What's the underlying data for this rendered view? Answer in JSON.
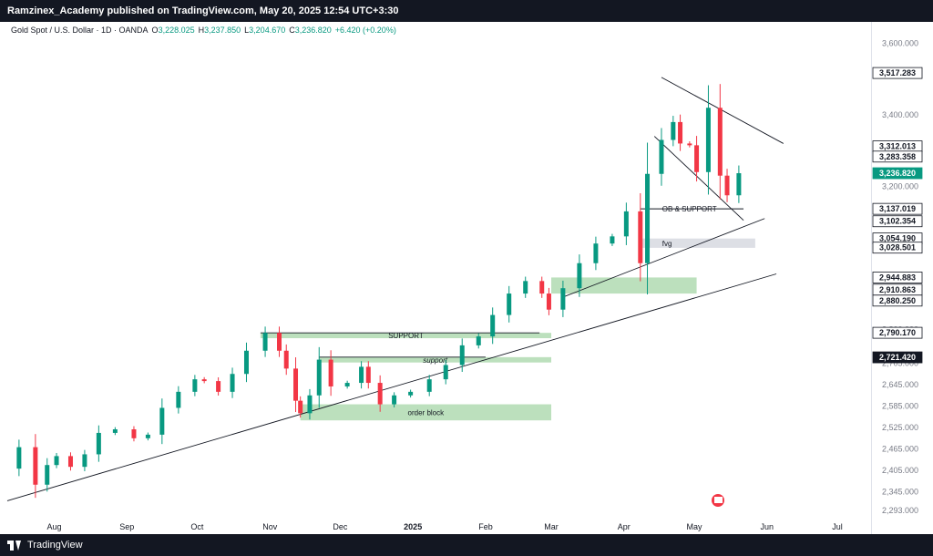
{
  "header": {
    "text": "Ramzinex_Academy published on TradingView.com, May 20, 2025 12:54 UTC+3:30"
  },
  "footer": {
    "brand": "TradingView"
  },
  "legend": {
    "symbol": "Gold Spot / U.S. Dollar · 1D · OANDA",
    "open_label": "O",
    "open": "3,228.025",
    "high_label": "H",
    "high": "3,237.850",
    "low_label": "L",
    "low": "3,204.670",
    "close_label": "C",
    "close": "3,236.820",
    "change": "+6.420 (+0.20%)"
  },
  "colors": {
    "up": "#089981",
    "down": "#f23645",
    "zone": "#a5d6a7",
    "fvg": "#d1d4dc",
    "dark_badge": "#131722",
    "price_badge": "#089981"
  },
  "chart_data": {
    "type": "candlestick",
    "x_range": [
      "2024-07-12",
      "2025-07-15"
    ],
    "y_range": [
      2270,
      3640
    ],
    "x_tick_labels": [
      {
        "label": "Aug",
        "date": "2024-08-01"
      },
      {
        "label": "Sep",
        "date": "2024-09-01"
      },
      {
        "label": "Oct",
        "date": "2024-10-01"
      },
      {
        "label": "Nov",
        "date": "2024-11-01"
      },
      {
        "label": "Dec",
        "date": "2024-12-01"
      },
      {
        "label": "2025",
        "date": "2025-01-01"
      },
      {
        "label": "Feb",
        "date": "2025-02-01"
      },
      {
        "label": "Mar",
        "date": "2025-03-01"
      },
      {
        "label": "Apr",
        "date": "2025-04-01"
      },
      {
        "label": "May",
        "date": "2025-05-01"
      },
      {
        "label": "Jun",
        "date": "2025-06-01"
      },
      {
        "label": "Jul",
        "date": "2025-07-01"
      }
    ],
    "y_tick_labels": [
      {
        "label": "3,600.000",
        "value": 3600
      },
      {
        "label": "3,400.000",
        "value": 3400
      },
      {
        "label": "3,200.000",
        "value": 3200
      },
      {
        "label": "2,800.000",
        "value": 2800
      },
      {
        "label": "2,705.000",
        "value": 2705
      },
      {
        "label": "2,645.000",
        "value": 2645
      },
      {
        "label": "2,585.000",
        "value": 2585
      },
      {
        "label": "2,525.000",
        "value": 2525
      },
      {
        "label": "2,465.000",
        "value": 2465
      },
      {
        "label": "2,405.000",
        "value": 2405
      },
      {
        "label": "2,345.000",
        "value": 2345
      },
      {
        "label": "2,293.000",
        "value": 2293
      }
    ],
    "price_badges": [
      {
        "label": "3,517.283",
        "value": 3517.283,
        "style": "white"
      },
      {
        "label": "3,312.013",
        "value": 3312.013,
        "style": "white"
      },
      {
        "label": "3,283.358",
        "value": 3283.358,
        "style": "white"
      },
      {
        "label": "3,236.820",
        "value": 3236.82,
        "style": "current"
      },
      {
        "label": "3,137.019",
        "value": 3137.019,
        "style": "white"
      },
      {
        "label": "3,102.354",
        "value": 3102.354,
        "style": "white"
      },
      {
        "label": "3,054.190",
        "value": 3054.19,
        "style": "white"
      },
      {
        "label": "3,028.501",
        "value": 3028.501,
        "style": "white"
      },
      {
        "label": "2,944.883",
        "value": 2944.883,
        "style": "white"
      },
      {
        "label": "2,910.863",
        "value": 2910.863,
        "style": "white"
      },
      {
        "label": "2,880.250",
        "value": 2880.25,
        "style": "white"
      },
      {
        "label": "2,790.170",
        "value": 2790.17,
        "style": "white"
      },
      {
        "label": "2,721.420",
        "value": 2721.42,
        "style": "dark"
      }
    ],
    "series": [
      {
        "date": "2024-07-12",
        "close": 2410
      },
      {
        "date": "2024-07-17",
        "close": 2470
      },
      {
        "date": "2024-07-24",
        "close": 2365
      },
      {
        "date": "2024-07-29",
        "close": 2420
      },
      {
        "date": "2024-08-02",
        "close": 2445
      },
      {
        "date": "2024-08-08",
        "close": 2415
      },
      {
        "date": "2024-08-14",
        "close": 2450
      },
      {
        "date": "2024-08-20",
        "close": 2510
      },
      {
        "date": "2024-08-27",
        "close": 2520
      },
      {
        "date": "2024-09-04",
        "close": 2495
      },
      {
        "date": "2024-09-10",
        "close": 2505
      },
      {
        "date": "2024-09-16",
        "close": 2580
      },
      {
        "date": "2024-09-23",
        "close": 2625
      },
      {
        "date": "2024-09-30",
        "close": 2660
      },
      {
        "date": "2024-10-04",
        "close": 2655
      },
      {
        "date": "2024-10-10",
        "close": 2625
      },
      {
        "date": "2024-10-16",
        "close": 2675
      },
      {
        "date": "2024-10-22",
        "close": 2740
      },
      {
        "date": "2024-10-30",
        "close": 2790
      },
      {
        "date": "2024-11-05",
        "close": 2740
      },
      {
        "date": "2024-11-08",
        "close": 2690
      },
      {
        "date": "2024-11-12",
        "close": 2600
      },
      {
        "date": "2024-11-14",
        "close": 2565
      },
      {
        "date": "2024-11-18",
        "close": 2615
      },
      {
        "date": "2024-11-22",
        "close": 2715
      },
      {
        "date": "2024-11-27",
        "close": 2640
      },
      {
        "date": "2024-12-04",
        "close": 2650
      },
      {
        "date": "2024-12-10",
        "close": 2695
      },
      {
        "date": "2024-12-13",
        "close": 2650
      },
      {
        "date": "2024-12-18",
        "close": 2590
      },
      {
        "date": "2024-12-24",
        "close": 2615
      },
      {
        "date": "2024-12-31",
        "close": 2625
      },
      {
        "date": "2025-01-08",
        "close": 2660
      },
      {
        "date": "2025-01-15",
        "close": 2700
      },
      {
        "date": "2025-01-22",
        "close": 2755
      },
      {
        "date": "2025-01-29",
        "close": 2780
      },
      {
        "date": "2025-02-04",
        "close": 2840
      },
      {
        "date": "2025-02-11",
        "close": 2900
      },
      {
        "date": "2025-02-18",
        "close": 2935
      },
      {
        "date": "2025-02-25",
        "close": 2900
      },
      {
        "date": "2025-02-28",
        "close": 2855
      },
      {
        "date": "2025-03-06",
        "close": 2915
      },
      {
        "date": "2025-03-13",
        "close": 2985
      },
      {
        "date": "2025-03-20",
        "close": 3040
      },
      {
        "date": "2025-03-27",
        "close": 3060
      },
      {
        "date": "2025-04-02",
        "close": 3130
      },
      {
        "date": "2025-04-08",
        "close": 2985
      },
      {
        "date": "2025-04-11",
        "close": 3235
      },
      {
        "date": "2025-04-17",
        "close": 3330
      },
      {
        "date": "2025-04-22",
        "close": 3380
      },
      {
        "date": "2025-04-25",
        "close": 3320
      },
      {
        "date": "2025-04-29",
        "close": 3315
      },
      {
        "date": "2025-05-02",
        "close": 3240
      },
      {
        "date": "2025-05-07",
        "close": 3420
      },
      {
        "date": "2025-05-12",
        "close": 3230
      },
      {
        "date": "2025-05-15",
        "close": 3175
      },
      {
        "date": "2025-05-20",
        "close": 3236.82
      }
    ],
    "zones": [
      {
        "label": "SUPPORT",
        "from": "2024-10-28",
        "to": "2025-03-01",
        "top": 2790,
        "bottom": 2775
      },
      {
        "label": "support",
        "from": "2024-11-22",
        "to": "2025-03-01",
        "top": 2722,
        "bottom": 2707
      },
      {
        "label": "order block",
        "from": "2024-11-14",
        "to": "2025-03-01",
        "top": 2590,
        "bottom": 2545
      },
      {
        "label": "",
        "from": "2025-03-01",
        "to": "2025-05-02",
        "top": 2945,
        "bottom": 2900
      },
      {
        "label": "fvg",
        "from": "2025-04-08",
        "to": "2025-05-27",
        "top": 3054,
        "bottom": 3028
      },
      {
        "label": "OB & SUPPORT",
        "from": "2025-04-08",
        "to": "2025-05-22",
        "top": 3137,
        "bottom": 3137
      }
    ],
    "trendlines": [
      {
        "from": {
          "date": "2024-07-12",
          "value": 2320
        },
        "to": {
          "date": "2025-06-05",
          "value": 2955
        }
      },
      {
        "from": {
          "date": "2025-03-06",
          "value": 2890
        },
        "to": {
          "date": "2025-05-31",
          "value": 3110
        }
      },
      {
        "from": {
          "date": "2025-04-17",
          "value": 3505
        },
        "to": {
          "date": "2025-06-08",
          "value": 3320
        }
      },
      {
        "from": {
          "date": "2025-04-14",
          "value": 3340
        },
        "to": {
          "date": "2025-05-22",
          "value": 3105
        }
      },
      {
        "from": {
          "date": "2024-10-28",
          "value": 2790
        },
        "to": {
          "date": "2025-02-24",
          "value": 2790
        }
      },
      {
        "from": {
          "date": "2024-11-22",
          "value": 2722
        },
        "to": {
          "date": "2025-02-01",
          "value": 2722
        }
      }
    ]
  }
}
